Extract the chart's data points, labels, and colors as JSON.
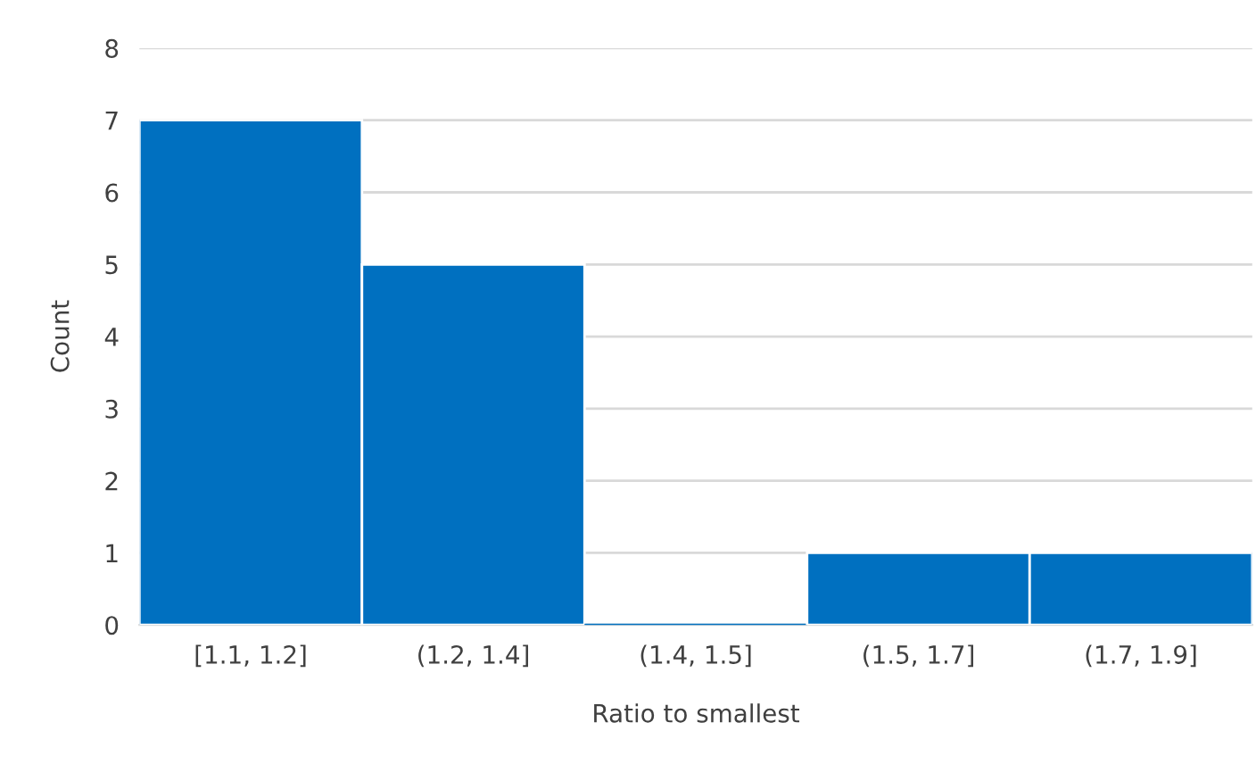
{
  "chart_data": {
    "type": "bar",
    "xlabel": "Ratio to smallest",
    "ylabel": "Count",
    "categories": [
      "[1.1, 1.2]",
      "(1.2, 1.4]",
      "(1.4, 1.5]",
      "(1.5, 1.7]",
      "(1.7, 1.9]"
    ],
    "values": [
      7,
      5,
      0,
      1,
      1
    ],
    "color": "#0070c0",
    "ylim": [
      0,
      8
    ],
    "yticks": [
      0,
      1,
      2,
      3,
      4,
      5,
      6,
      7,
      8
    ],
    "grid": "y",
    "legend": false
  }
}
